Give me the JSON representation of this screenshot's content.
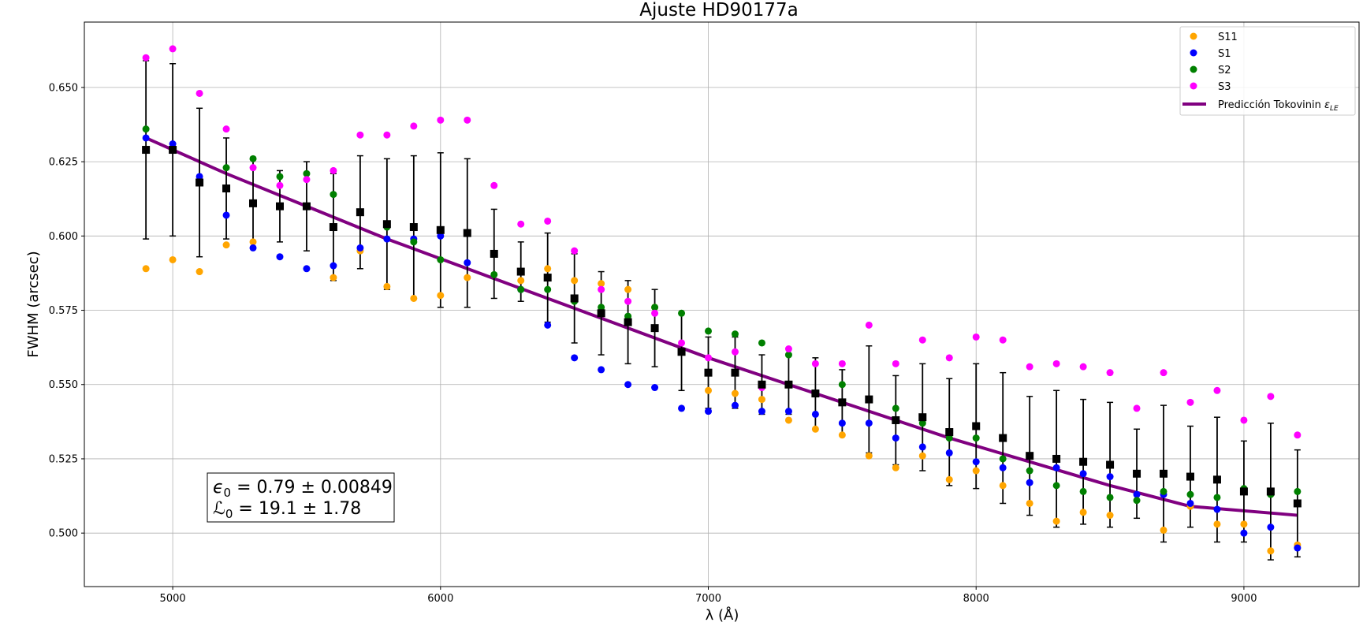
{
  "chart_data": {
    "type": "scatter",
    "title": "Ajuste HD90177a",
    "xlabel": "λ (Å)",
    "ylabel": "FWHM (arcsec)",
    "xlim": [
      4670,
      9430
    ],
    "ylim": [
      0.482,
      0.672
    ],
    "grid": true,
    "legend_position": "top-right",
    "x_ticks": [
      5000,
      6000,
      7000,
      8000,
      9000
    ],
    "y_ticks": [
      0.5,
      0.525,
      0.55,
      0.575,
      0.6,
      0.625,
      0.65
    ],
    "x": [
      4900,
      5000,
      5100,
      5200,
      5300,
      5400,
      5500,
      5600,
      5700,
      5800,
      5900,
      6000,
      6100,
      6200,
      6300,
      6400,
      6500,
      6600,
      6700,
      6800,
      6900,
      7000,
      7100,
      7200,
      7300,
      7400,
      7500,
      7600,
      7700,
      7800,
      7900,
      8000,
      8100,
      8200,
      8300,
      8400,
      8500,
      8600,
      8700,
      8800,
      8900,
      9000,
      9100,
      9200
    ],
    "series": [
      {
        "name": "S11",
        "color": "#ffa500",
        "marker": "circle",
        "values": [
          0.589,
          0.592,
          0.588,
          0.597,
          0.598,
          null,
          null,
          0.586,
          0.595,
          0.583,
          0.579,
          0.58,
          0.586,
          null,
          0.585,
          0.589,
          0.585,
          0.584,
          0.582,
          0.576,
          0.561,
          0.548,
          0.547,
          0.545,
          0.538,
          0.535,
          0.533,
          0.526,
          0.522,
          0.526,
          0.518,
          0.521,
          0.516,
          0.51,
          0.504,
          0.507,
          0.506,
          null,
          0.501,
          0.509,
          0.503,
          0.503,
          0.494,
          0.496
        ]
      },
      {
        "name": "S1",
        "color": "#0000ff",
        "marker": "circle",
        "values": [
          0.633,
          0.631,
          0.62,
          0.607,
          0.596,
          0.593,
          0.589,
          0.59,
          0.596,
          0.599,
          0.599,
          0.6,
          0.591,
          null,
          0.582,
          0.57,
          0.559,
          0.555,
          0.55,
          0.549,
          0.542,
          0.541,
          0.543,
          0.541,
          0.541,
          0.54,
          0.537,
          0.537,
          0.532,
          0.529,
          0.527,
          0.524,
          0.522,
          0.517,
          0.522,
          0.52,
          0.519,
          0.513,
          0.513,
          0.51,
          0.508,
          0.5,
          0.502,
          0.495
        ]
      },
      {
        "name": "S2",
        "color": "#008000",
        "marker": "circle",
        "values": [
          0.636,
          0.629,
          0.618,
          0.623,
          0.626,
          0.62,
          0.621,
          0.614,
          null,
          0.603,
          0.598,
          0.592,
          null,
          0.587,
          0.582,
          0.582,
          0.578,
          0.576,
          0.573,
          0.576,
          0.574,
          0.568,
          0.567,
          0.564,
          0.56,
          null,
          0.55,
          null,
          0.542,
          0.537,
          0.532,
          0.532,
          0.525,
          0.521,
          0.516,
          0.514,
          0.512,
          0.511,
          0.514,
          0.513,
          0.512,
          0.515,
          0.513,
          0.514
        ]
      },
      {
        "name": "S3",
        "color": "#ff00ff",
        "marker": "circle",
        "values": [
          0.66,
          0.663,
          0.648,
          0.636,
          0.623,
          0.617,
          0.619,
          0.622,
          0.634,
          0.634,
          0.637,
          0.639,
          0.639,
          0.617,
          0.604,
          0.605,
          0.595,
          0.582,
          0.578,
          0.574,
          0.564,
          0.559,
          0.561,
          0.549,
          0.562,
          0.557,
          0.557,
          0.57,
          0.557,
          0.565,
          0.559,
          0.566,
          0.565,
          0.556,
          0.557,
          0.556,
          0.554,
          0.542,
          0.554,
          0.544,
          0.548,
          0.538,
          0.546,
          0.533
        ]
      }
    ],
    "mean": {
      "color": "#000000",
      "marker": "square",
      "values": [
        0.629,
        0.629,
        0.618,
        0.616,
        0.611,
        0.61,
        0.61,
        0.603,
        0.608,
        0.604,
        0.603,
        0.602,
        0.601,
        0.594,
        0.588,
        0.586,
        0.579,
        0.574,
        0.571,
        0.569,
        0.561,
        0.554,
        0.554,
        0.55,
        0.55,
        0.547,
        0.544,
        0.545,
        0.538,
        0.539,
        0.534,
        0.536,
        0.532,
        0.526,
        0.525,
        0.524,
        0.523,
        0.52,
        0.52,
        0.519,
        0.518,
        0.514,
        0.514,
        0.51
      ],
      "error": [
        0.03,
        0.029,
        0.025,
        0.017,
        0.015,
        0.012,
        0.015,
        0.018,
        0.019,
        0.022,
        0.024,
        0.026,
        0.025,
        0.015,
        0.01,
        0.015,
        0.015,
        0.014,
        0.014,
        0.013,
        0.013,
        0.012,
        0.012,
        0.01,
        0.01,
        0.012,
        0.011,
        0.018,
        0.015,
        0.018,
        0.018,
        0.021,
        0.022,
        0.02,
        0.023,
        0.021,
        0.021,
        0.015,
        0.023,
        0.017,
        0.021,
        0.017,
        0.023,
        0.018
      ]
    },
    "fit": {
      "name": "Predicción Tokovinin",
      "legend_math": "ε",
      "legend_sub": "LE",
      "color": "#800080",
      "x": [
        4900,
        5200,
        5500,
        5800,
        6100,
        6400,
        6700,
        7000,
        7300,
        7600,
        7900,
        8200,
        8500,
        8800,
        9200
      ],
      "y": [
        0.633,
        0.621,
        0.61,
        0.599,
        0.589,
        0.579,
        0.569,
        0.559,
        0.55,
        0.541,
        0.532,
        0.524,
        0.516,
        0.509,
        0.506
      ]
    },
    "annotation": {
      "line1_sym": "ϵ",
      "line1_sub": "0",
      "line1_rest": " = 0.79 ± 0.00849",
      "line2_sym": "ℒ",
      "line2_sub": "0",
      "line2_rest": " = 19.1 ± 1.78"
    }
  }
}
